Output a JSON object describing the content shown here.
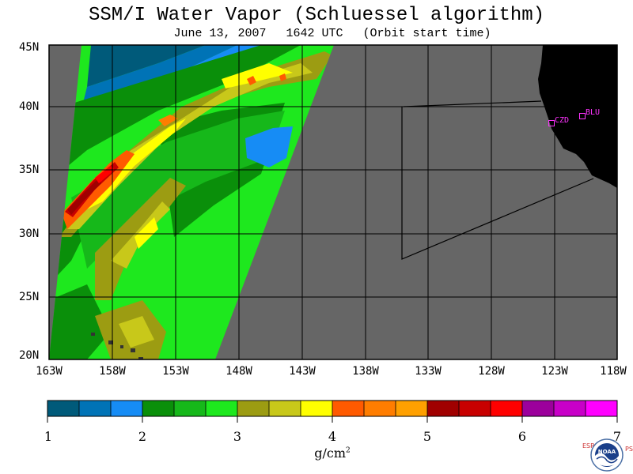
{
  "title": "SSM/I Water Vapor (Schluessel algorithm)",
  "subtitle": {
    "date": "June 13, 2007",
    "time": "1642 UTC",
    "note": "(Orbit start time)"
  },
  "map": {
    "lat_labels": [
      "45N",
      "40N",
      "35N",
      "30N",
      "25N",
      "20N"
    ],
    "lon_labels": [
      "163W",
      "158W",
      "153W",
      "148W",
      "143W",
      "138W",
      "133W",
      "128W",
      "123W",
      "118W"
    ],
    "stations": [
      {
        "id": "CZD",
        "label": "CZD"
      },
      {
        "id": "BLU",
        "label": "BLU"
      }
    ]
  },
  "colorbar": {
    "ticks": [
      "1",
      "2",
      "3",
      "4",
      "5",
      "6",
      "7"
    ],
    "units": "g/cm",
    "units_sup": "2",
    "colors": [
      "#005a7a",
      "#0073b6",
      "#168cf5",
      "#0a8f0a",
      "#16b81a",
      "#1ee81e",
      "#9c9c12",
      "#c8c81a",
      "#ffff00",
      "#ff5a00",
      "#ff7d00",
      "#ffa000",
      "#a00000",
      "#c80000",
      "#ff0000",
      "#9c009c",
      "#c800c8",
      "#ff00ff"
    ]
  },
  "logo": {
    "left_text": "ESRL",
    "right_text": "PSD",
    "center_text": "NOAA"
  }
}
